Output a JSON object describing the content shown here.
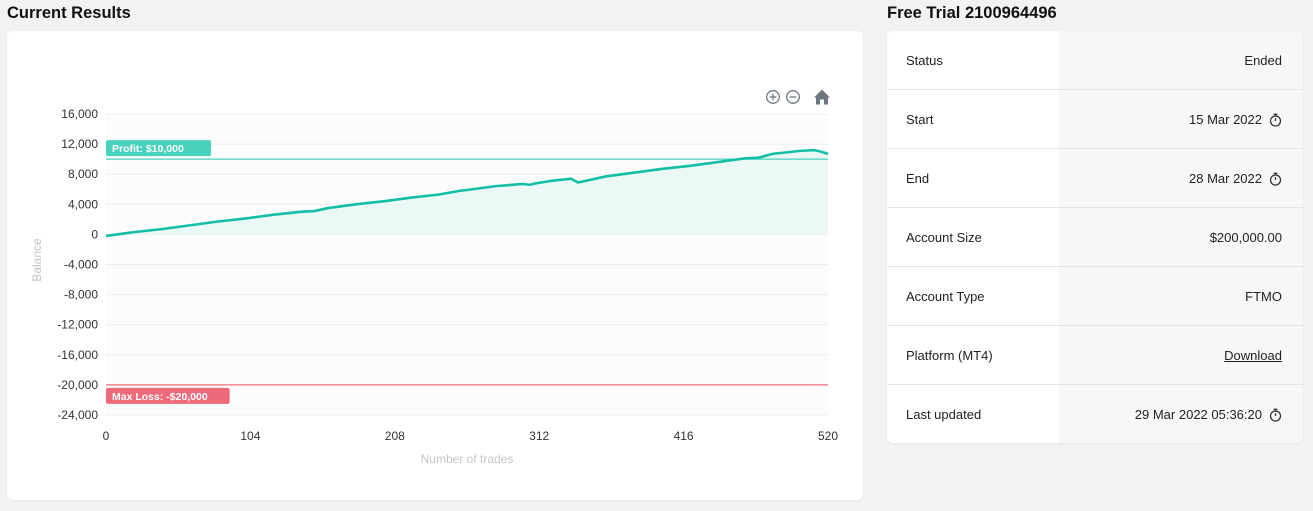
{
  "left_title": "Current Results",
  "right_title": "Free Trial 2100964496",
  "toolbar": {
    "zoom_in": "zoom-in-icon",
    "zoom_out": "zoom-out-icon",
    "reset": "home-icon"
  },
  "colors": {
    "line": "#12bfa6",
    "area": "#eaf8f6",
    "profit": "#48d1bd",
    "loss": "#ee6a7b",
    "grid": "#ececec"
  },
  "chart_data": {
    "type": "area",
    "xlabel": "Number of trades",
    "ylabel": "Balance",
    "xlim": [
      0,
      520
    ],
    "ylim": [
      -24000,
      16000
    ],
    "x_ticks": [
      0,
      104,
      208,
      312,
      416,
      520
    ],
    "y_ticks": [
      16000,
      12000,
      8000,
      4000,
      0,
      -4000,
      -8000,
      -12000,
      -16000,
      -20000,
      -24000
    ],
    "x_tick_labels": [
      "0",
      "104",
      "208",
      "312",
      "416",
      "520"
    ],
    "y_tick_labels": [
      "16,000",
      "12,000",
      "8,000",
      "4,000",
      "0",
      "-4,000",
      "-8,000",
      "-12,000",
      "-16,000",
      "-20,000",
      "-24,000"
    ],
    "grid": true,
    "thresholds": [
      {
        "name": "profit",
        "label": "Profit: $10,000",
        "value": 10000
      },
      {
        "name": "loss",
        "label": "Max Loss: -$20,000",
        "value": -20000
      }
    ],
    "series": [
      {
        "x": [
          0,
          20,
          40,
          60,
          80,
          100,
          120,
          140,
          150,
          160,
          180,
          200,
          220,
          240,
          255,
          260,
          280,
          300,
          305,
          310,
          320,
          335,
          340,
          360,
          380,
          400,
          420,
          440,
          460,
          470,
          480,
          490,
          500,
          510,
          515,
          520
        ],
        "y": [
          -200,
          300,
          700,
          1200,
          1700,
          2100,
          2600,
          3000,
          3100,
          3500,
          4000,
          4400,
          4900,
          5300,
          5800,
          5900,
          6400,
          6700,
          6600,
          6800,
          7100,
          7400,
          6900,
          7700,
          8200,
          8700,
          9100,
          9600,
          10100,
          10200,
          10700,
          10900,
          11100,
          11200,
          11000,
          10700
        ]
      }
    ]
  },
  "info": {
    "rows": [
      {
        "label": "Status",
        "value": "Ended"
      },
      {
        "label": "Start",
        "value": "15 Mar 2022",
        "icon": "stopwatch-icon"
      },
      {
        "label": "End",
        "value": "28 Mar 2022",
        "icon": "stopwatch-icon"
      },
      {
        "label": "Account Size",
        "value": "$200,000.00"
      },
      {
        "label": "Account Type",
        "value": "FTMO"
      },
      {
        "label": "Platform (MT4)",
        "value": "Download",
        "link": true
      },
      {
        "label": "Last updated",
        "value": "29 Mar 2022 05:36:20",
        "icon": "stopwatch-icon"
      }
    ]
  }
}
